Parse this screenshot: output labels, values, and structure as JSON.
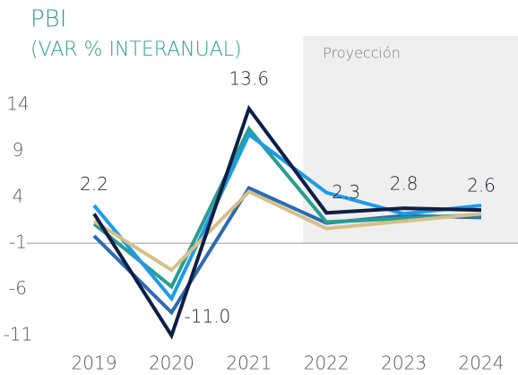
{
  "chart_data": {
    "type": "line",
    "title": "PBI",
    "subtitle": "(VAR % INTERANUAL)",
    "annotation": "Proyección",
    "shade_from": "2022",
    "categories": [
      "2019",
      "2020",
      "2021",
      "2022",
      "2023",
      "2024"
    ],
    "series": [
      {
        "color": "#2e6bb0",
        "values": [
          -0.2,
          -8.5,
          5.0,
          1.2,
          2.0,
          1.8
        ]
      },
      {
        "color": "#2a9d8f",
        "values": [
          1.1,
          -5.7,
          11.4,
          1.3,
          1.7,
          2.1
        ]
      },
      {
        "color": "#1e9be8",
        "values": [
          3.1,
          -7.0,
          10.8,
          4.5,
          2.2,
          3.1
        ]
      },
      {
        "color": "#d4c08a",
        "values": [
          1.4,
          -3.9,
          4.6,
          0.6,
          1.4,
          2.2
        ]
      },
      {
        "color": "#0d1f45",
        "values": [
          2.2,
          -11.0,
          13.6,
          2.3,
          2.8,
          2.6
        ],
        "value_labels": [
          "2.2",
          "-11.0",
          "13.6",
          "2.3",
          "2.8",
          "2.6"
        ]
      }
    ],
    "ylim": [
      -12.5,
      15
    ],
    "yticks": [
      14,
      9,
      4,
      -1,
      -6,
      -11
    ],
    "reference_line": -1,
    "grid": false
  }
}
